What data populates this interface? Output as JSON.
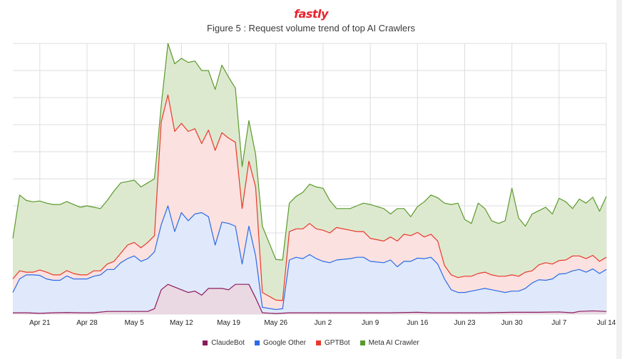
{
  "brand": {
    "name": "fastly",
    "color": "#e8232c"
  },
  "figure_title": "Figure 5 : Request volume trend of top AI Crawlers",
  "chart_data": {
    "type": "area",
    "title": "Figure 5 : Request volume trend of top AI Crawlers",
    "xlabel": "",
    "ylabel": "",
    "stacked": true,
    "grid": true,
    "legend_position": "bottom",
    "ylim": [
      0,
      10
    ],
    "x_tick_labels": [
      "Apr 21",
      "Apr 28",
      "May 5",
      "May 12",
      "May 19",
      "May 26",
      "Jun 2",
      "Jun 9",
      "Jun 16",
      "Jun 23",
      "Jun 30",
      "Jul 7",
      "Jul 14"
    ],
    "x_tick_days": [
      4,
      11,
      18,
      25,
      32,
      39,
      46,
      53,
      60,
      67,
      74,
      81,
      88
    ],
    "x_range_days": [
      0,
      88
    ],
    "series": [
      {
        "name": "ClaudeBot",
        "color": "#8b1a5c",
        "fill": "#ead8e2",
        "values": [
          [
            0,
            0.05
          ],
          [
            2,
            0.05
          ],
          [
            4,
            0.03
          ],
          [
            6,
            0.05
          ],
          [
            8,
            0.06
          ],
          [
            10,
            0.05
          ],
          [
            12,
            0.05
          ],
          [
            14,
            0.1
          ],
          [
            16,
            0.1
          ],
          [
            18,
            0.1
          ],
          [
            20,
            0.1
          ],
          [
            21,
            0.2
          ],
          [
            22,
            0.9
          ],
          [
            23,
            1.1
          ],
          [
            25,
            0.9
          ],
          [
            26,
            0.8
          ],
          [
            27,
            0.85
          ],
          [
            28,
            0.7
          ],
          [
            29,
            0.95
          ],
          [
            31,
            0.95
          ],
          [
            32,
            0.9
          ],
          [
            33,
            1.1
          ],
          [
            35,
            1.1
          ],
          [
            36,
            0.6
          ],
          [
            37,
            0.05
          ],
          [
            39,
            0.02
          ],
          [
            41,
            0.05
          ],
          [
            44,
            0.05
          ],
          [
            48,
            0.05
          ],
          [
            52,
            0.05
          ],
          [
            56,
            0.05
          ],
          [
            60,
            0.07
          ],
          [
            62,
            0.05
          ],
          [
            64,
            0.05
          ],
          [
            66,
            0.05
          ],
          [
            70,
            0.05
          ],
          [
            74,
            0.07
          ],
          [
            78,
            0.07
          ],
          [
            81,
            0.08
          ],
          [
            83,
            0.05
          ],
          [
            84,
            0.1
          ],
          [
            86,
            0.12
          ],
          [
            88,
            0.1
          ]
        ]
      },
      {
        "name": "Google Other",
        "color": "#2b6be8",
        "fill": "#dfe9fb",
        "values": [
          [
            0,
            0.75
          ],
          [
            1,
            1.3
          ],
          [
            2,
            1.4
          ],
          [
            3,
            1.45
          ],
          [
            4,
            1.4
          ],
          [
            5,
            1.3
          ],
          [
            6,
            1.2
          ],
          [
            7,
            1.25
          ],
          [
            8,
            1.35
          ],
          [
            9,
            1.3
          ],
          [
            10,
            1.25
          ],
          [
            11,
            1.3
          ],
          [
            12,
            1.35
          ],
          [
            13,
            1.45
          ],
          [
            14,
            1.55
          ],
          [
            15,
            1.65
          ],
          [
            16,
            1.8
          ],
          [
            17,
            2.05
          ],
          [
            18,
            2.05
          ],
          [
            19,
            1.95
          ],
          [
            20,
            1.95
          ],
          [
            21,
            2.1
          ],
          [
            22,
            2.4
          ],
          [
            23,
            2.9
          ],
          [
            24,
            3.05
          ],
          [
            25,
            2.85
          ],
          [
            26,
            2.65
          ],
          [
            27,
            2.85
          ],
          [
            28,
            3.05
          ],
          [
            29,
            2.65
          ],
          [
            30,
            2.55
          ],
          [
            31,
            2.45
          ],
          [
            32,
            2.45
          ],
          [
            33,
            2.15
          ],
          [
            34,
            1.85
          ],
          [
            35,
            2.15
          ],
          [
            36,
            1.55
          ],
          [
            37,
            0.2
          ],
          [
            39,
            0.15
          ],
          [
            40,
            0.2
          ],
          [
            41,
            1.95
          ],
          [
            42,
            2.1
          ],
          [
            43,
            2.05
          ],
          [
            44,
            2.15
          ],
          [
            45,
            2.05
          ],
          [
            46,
            1.95
          ],
          [
            47,
            1.9
          ],
          [
            48,
            1.95
          ],
          [
            50,
            2.05
          ],
          [
            51,
            2.1
          ],
          [
            52,
            2.05
          ],
          [
            53,
            1.95
          ],
          [
            55,
            1.9
          ],
          [
            56,
            1.95
          ],
          [
            57,
            1.75
          ],
          [
            58,
            1.95
          ],
          [
            59,
            1.95
          ],
          [
            60,
            2.0
          ],
          [
            61,
            2.05
          ],
          [
            62,
            2.05
          ],
          [
            63,
            1.85
          ],
          [
            64,
            1.25
          ],
          [
            65,
            0.9
          ],
          [
            66,
            0.75
          ],
          [
            67,
            0.8
          ],
          [
            68,
            0.85
          ],
          [
            69,
            0.9
          ],
          [
            70,
            0.9
          ],
          [
            71,
            0.9
          ],
          [
            72,
            0.85
          ],
          [
            73,
            0.8
          ],
          [
            74,
            0.78
          ],
          [
            75,
            0.85
          ],
          [
            76,
            0.95
          ],
          [
            77,
            1.15
          ],
          [
            78,
            1.2
          ],
          [
            79,
            1.25
          ],
          [
            80,
            1.3
          ],
          [
            81,
            1.4
          ],
          [
            82,
            1.5
          ],
          [
            83,
            1.55
          ],
          [
            84,
            1.55
          ],
          [
            85,
            1.55
          ],
          [
            86,
            1.55
          ],
          [
            87,
            1.5
          ],
          [
            88,
            1.55
          ]
        ]
      },
      {
        "name": "GPTBot",
        "color": "#e8392c",
        "fill": "#fbe1df",
        "values": [
          [
            0,
            0.5
          ],
          [
            1,
            0.3
          ],
          [
            2,
            0.1
          ],
          [
            3,
            0.1
          ],
          [
            4,
            0.2
          ],
          [
            5,
            0.25
          ],
          [
            6,
            0.2
          ],
          [
            7,
            0.2
          ],
          [
            8,
            0.2
          ],
          [
            9,
            0.2
          ],
          [
            10,
            0.15
          ],
          [
            11,
            0.15
          ],
          [
            12,
            0.2
          ],
          [
            13,
            0.15
          ],
          [
            14,
            0.2
          ],
          [
            15,
            0.3
          ],
          [
            16,
            0.35
          ],
          [
            17,
            0.5
          ],
          [
            18,
            0.5
          ],
          [
            19,
            0.5
          ],
          [
            20,
            0.6
          ],
          [
            21,
            0.6
          ],
          [
            22,
            3.8
          ],
          [
            23,
            4.1
          ],
          [
            24,
            3.7
          ],
          [
            25,
            3.3
          ],
          [
            26,
            3.3
          ],
          [
            27,
            3.15
          ],
          [
            28,
            2.55
          ],
          [
            29,
            3.2
          ],
          [
            30,
            3.5
          ],
          [
            31,
            3.3
          ],
          [
            32,
            3.15
          ],
          [
            33,
            3.1
          ],
          [
            34,
            2.05
          ],
          [
            35,
            2.4
          ],
          [
            36,
            2.55
          ],
          [
            37,
            0.55
          ],
          [
            39,
            0.35
          ],
          [
            40,
            0.3
          ],
          [
            41,
            1.05
          ],
          [
            42,
            1.05
          ],
          [
            43,
            1.1
          ],
          [
            44,
            1.15
          ],
          [
            45,
            1.1
          ],
          [
            46,
            1.15
          ],
          [
            47,
            1.1
          ],
          [
            48,
            1.2
          ],
          [
            50,
            1.05
          ],
          [
            51,
            0.95
          ],
          [
            52,
            0.95
          ],
          [
            53,
            0.85
          ],
          [
            55,
            0.8
          ],
          [
            56,
            0.85
          ],
          [
            57,
            0.95
          ],
          [
            58,
            1.0
          ],
          [
            59,
            0.95
          ],
          [
            60,
            0.95
          ],
          [
            61,
            0.8
          ],
          [
            62,
            0.85
          ],
          [
            63,
            0.85
          ],
          [
            64,
            0.5
          ],
          [
            65,
            0.55
          ],
          [
            66,
            0.55
          ],
          [
            67,
            0.6
          ],
          [
            68,
            0.55
          ],
          [
            69,
            0.6
          ],
          [
            70,
            0.6
          ],
          [
            71,
            0.55
          ],
          [
            72,
            0.55
          ],
          [
            73,
            0.6
          ],
          [
            74,
            0.6
          ],
          [
            75,
            0.55
          ],
          [
            76,
            0.6
          ],
          [
            77,
            0.45
          ],
          [
            78,
            0.55
          ],
          [
            79,
            0.65
          ],
          [
            80,
            0.55
          ],
          [
            81,
            0.5
          ],
          [
            82,
            0.5
          ],
          [
            83,
            0.55
          ],
          [
            84,
            0.5
          ],
          [
            85,
            0.5
          ],
          [
            86,
            0.5
          ],
          [
            87,
            0.45
          ],
          [
            88,
            0.45
          ]
        ]
      },
      {
        "name": "Meta AI Crawler",
        "color": "#5a9a2c",
        "fill": "#dde9cf",
        "values": [
          [
            0,
            1.5
          ],
          [
            1,
            2.8
          ],
          [
            2,
            2.65
          ],
          [
            3,
            2.6
          ],
          [
            4,
            2.55
          ],
          [
            5,
            2.55
          ],
          [
            6,
            2.6
          ],
          [
            7,
            2.6
          ],
          [
            8,
            2.55
          ],
          [
            9,
            2.55
          ],
          [
            10,
            2.5
          ],
          [
            11,
            2.55
          ],
          [
            12,
            2.35
          ],
          [
            13,
            2.3
          ],
          [
            14,
            2.35
          ],
          [
            15,
            2.6
          ],
          [
            16,
            2.6
          ],
          [
            17,
            2.35
          ],
          [
            18,
            2.3
          ],
          [
            19,
            2.25
          ],
          [
            20,
            2.2
          ],
          [
            21,
            2.1
          ],
          [
            22,
            0.6
          ],
          [
            23,
            1.9
          ],
          [
            24,
            2.5
          ],
          [
            25,
            2.4
          ],
          [
            26,
            2.55
          ],
          [
            27,
            2.5
          ],
          [
            28,
            2.7
          ],
          [
            29,
            2.2
          ],
          [
            30,
            2.25
          ],
          [
            31,
            2.5
          ],
          [
            32,
            2.25
          ],
          [
            33,
            2.0
          ],
          [
            34,
            1.55
          ],
          [
            35,
            1.5
          ],
          [
            36,
            1.2
          ],
          [
            37,
            2.45
          ],
          [
            39,
            1.5
          ],
          [
            40,
            1.5
          ],
          [
            41,
            1.05
          ],
          [
            42,
            1.2
          ],
          [
            43,
            1.35
          ],
          [
            44,
            1.45
          ],
          [
            45,
            1.55
          ],
          [
            46,
            1.55
          ],
          [
            47,
            1.2
          ],
          [
            48,
            0.7
          ],
          [
            50,
            0.8
          ],
          [
            51,
            0.95
          ],
          [
            52,
            1.05
          ],
          [
            53,
            1.25
          ],
          [
            55,
            1.2
          ],
          [
            56,
            0.85
          ],
          [
            57,
            1.2
          ],
          [
            58,
            0.95
          ],
          [
            59,
            0.7
          ],
          [
            60,
            0.95
          ],
          [
            61,
            1.3
          ],
          [
            62,
            1.45
          ],
          [
            63,
            1.6
          ],
          [
            64,
            2.3
          ],
          [
            65,
            2.6
          ],
          [
            66,
            2.75
          ],
          [
            67,
            2.1
          ],
          [
            68,
            1.95
          ],
          [
            69,
            2.6
          ],
          [
            70,
            2.35
          ],
          [
            71,
            2.0
          ],
          [
            72,
            1.95
          ],
          [
            73,
            2.05
          ],
          [
            74,
            3.2
          ],
          [
            75,
            2.15
          ],
          [
            76,
            1.7
          ],
          [
            77,
            2.1
          ],
          [
            78,
            2.0
          ],
          [
            79,
            2.05
          ],
          [
            80,
            1.85
          ],
          [
            81,
            2.3
          ],
          [
            82,
            2.15
          ],
          [
            83,
            1.75
          ],
          [
            84,
            2.1
          ],
          [
            85,
            2.05
          ],
          [
            86,
            2.15
          ],
          [
            87,
            1.85
          ],
          [
            88,
            2.25
          ]
        ]
      }
    ]
  }
}
